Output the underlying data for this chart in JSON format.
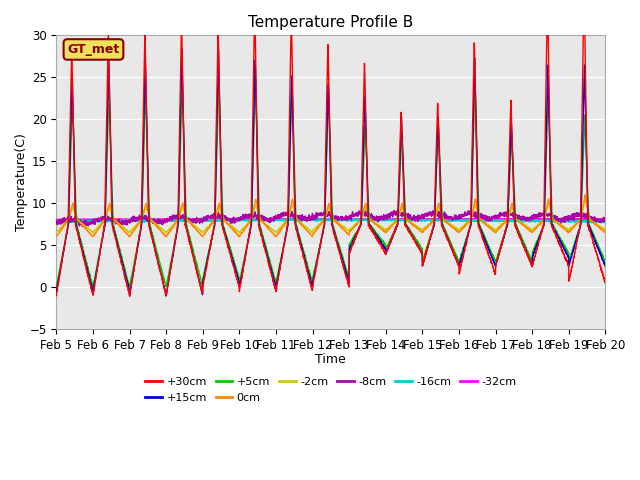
{
  "title": "Temperature Profile B",
  "xlabel": "Time",
  "ylabel": "Temperature(C)",
  "annotation": "GT_met",
  "ylim": [
    -5,
    30
  ],
  "xlim": [
    0,
    15
  ],
  "x_tick_labels": [
    "Feb 5",
    "Feb 6",
    "Feb 7",
    "Feb 8",
    "Feb 9",
    "Feb 10",
    "Feb 11",
    "Feb 12",
    "Feb 13",
    "Feb 14",
    "Feb 15",
    "Feb 16",
    "Feb 17",
    "Feb 18",
    "Feb 19",
    "Feb 20"
  ],
  "bg_color": "#e8e8e8",
  "series": {
    "+30cm": {
      "color": "#ff0000",
      "lw": 1.0
    },
    "+15cm": {
      "color": "#0000dd",
      "lw": 1.0
    },
    "+5cm": {
      "color": "#00cc00",
      "lw": 1.0
    },
    "0cm": {
      "color": "#ff8800",
      "lw": 1.0
    },
    "-2cm": {
      "color": "#cccc00",
      "lw": 1.0
    },
    "-8cm": {
      "color": "#aa00aa",
      "lw": 1.0
    },
    "-16cm": {
      "color": "#00cccc",
      "lw": 1.2
    },
    "-32cm": {
      "color": "#ff00ff",
      "lw": 1.5
    }
  },
  "legend_order": [
    "+30cm",
    "+15cm",
    "+5cm",
    "0cm",
    "-2cm",
    "-8cm",
    "-16cm",
    "-32cm"
  ]
}
